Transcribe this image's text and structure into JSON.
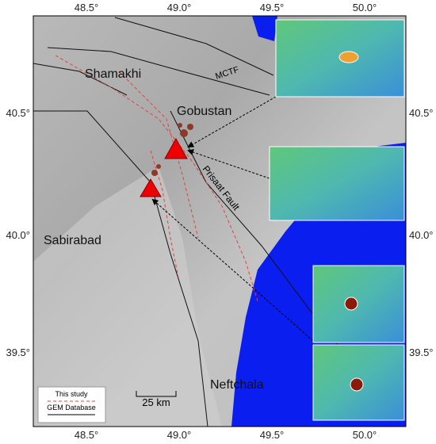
{
  "lon_labels": [
    "48.5°",
    "49.0°",
    "49.5°",
    "50.0°"
  ],
  "lat_labels": [
    "40.5°",
    "40.0°",
    "39.5°"
  ],
  "places": {
    "shamakhi": "Shamakhi",
    "gobustan": "Gobustan",
    "sabirabad": "Sabirabad",
    "neftchala": "Neftchala"
  },
  "faults": {
    "mctf": "MCTF",
    "prisaat": "Prisaat Fault"
  },
  "legend": {
    "this_study": "This study",
    "gem": "GEM Database"
  },
  "scale_bar": "25 km"
}
